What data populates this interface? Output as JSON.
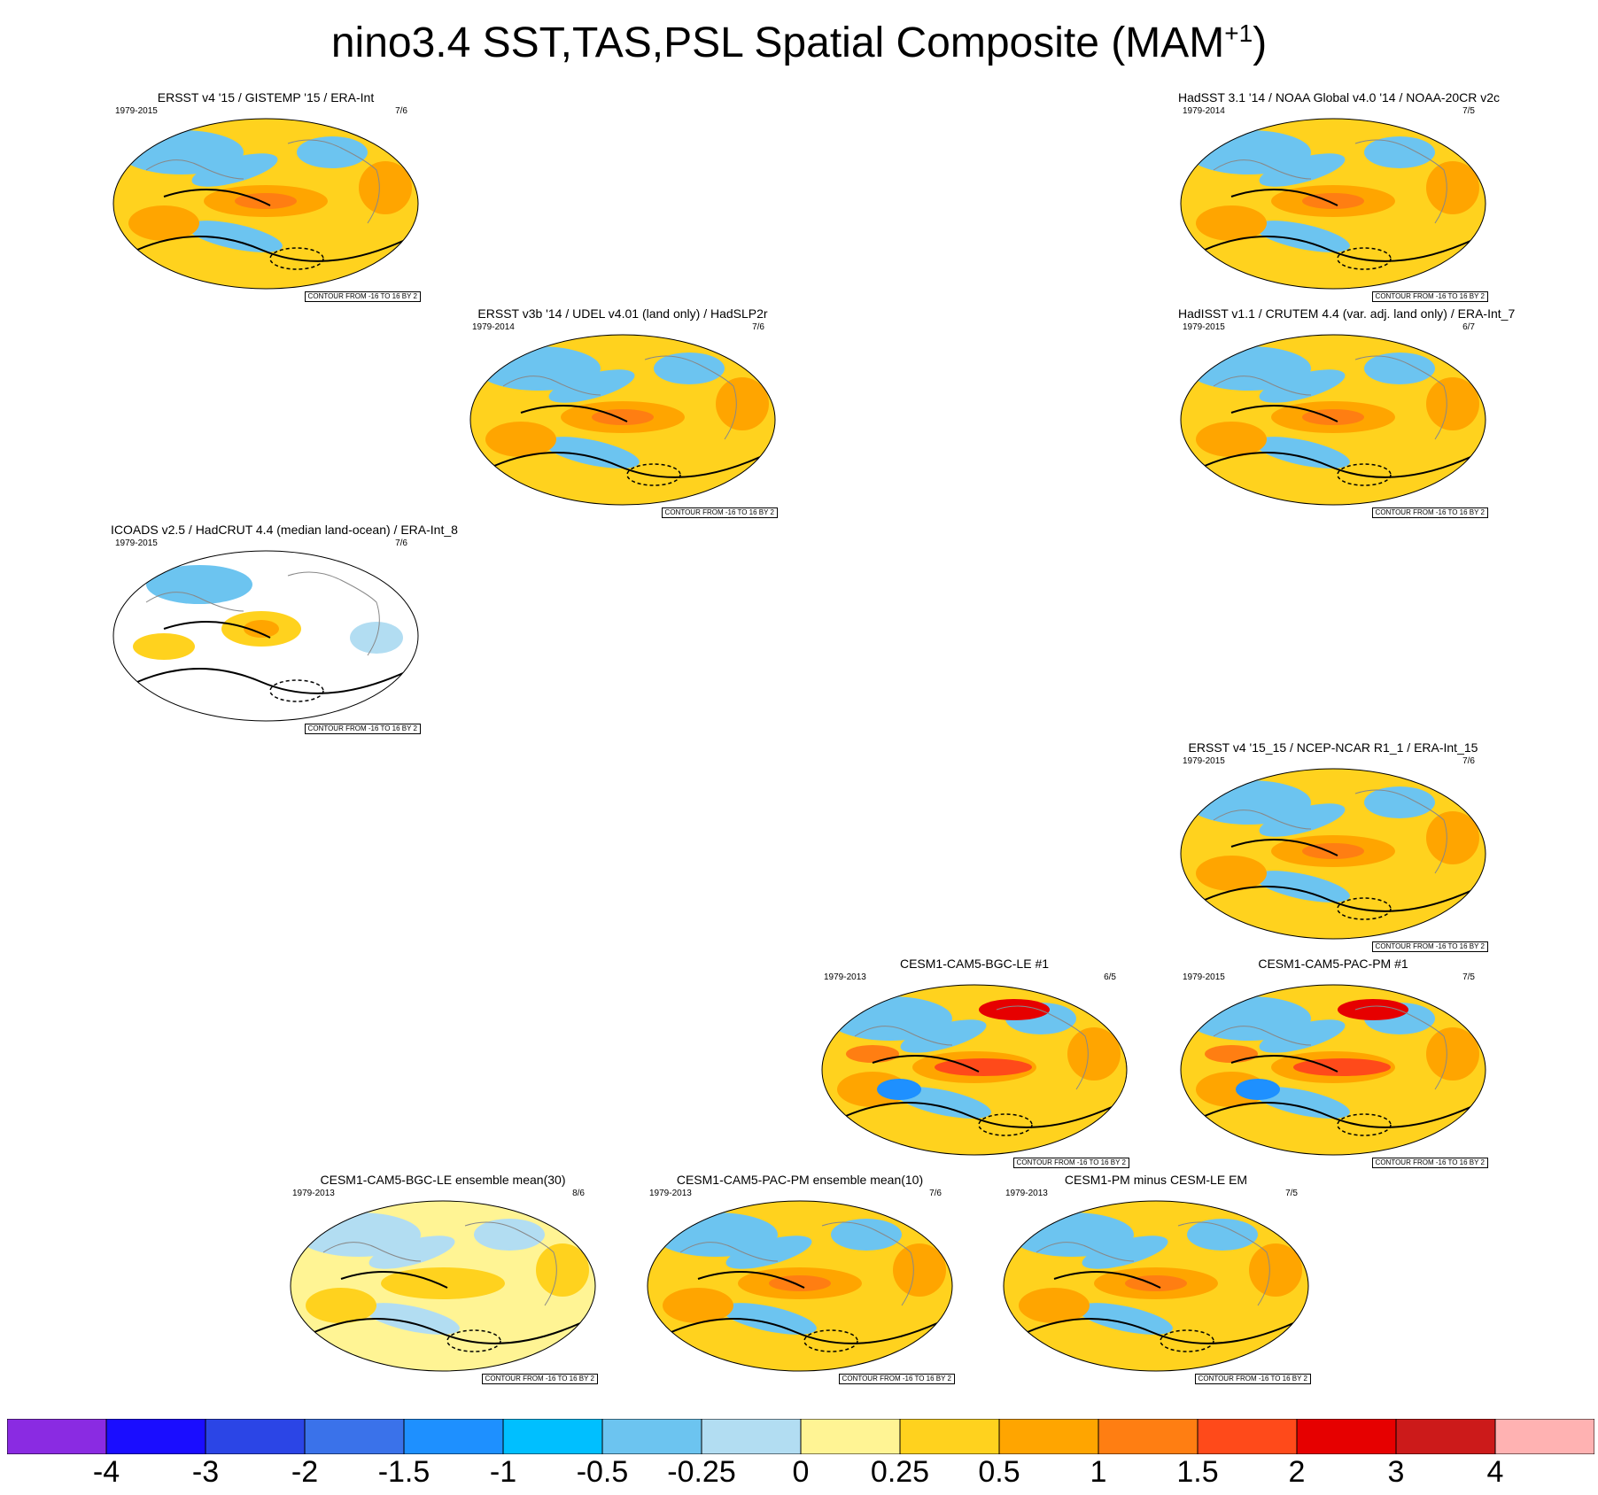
{
  "title_main": "nino3.4 SST,TAS,PSL Spatial Composite (MAM",
  "title_sup": "+1",
  "title_end": ")",
  "contour_text": "CONTOUR FROM -16 TO 16 BY 2",
  "panels": [
    {
      "title": "ERSST v4 '15 / GISTEMP '15 / ERA-Int",
      "years": "1979-2015",
      "ratio": "7/6",
      "style": "obs"
    },
    {
      "title": "HadSST 3.1 '14 / NOAA Global v4.0 '14 / NOAA-20CR v2c",
      "years": "1979-2014",
      "ratio": "7/5",
      "style": "obs"
    },
    {
      "title": "ERSST v3b '14 / UDEL v4.01 (land only) / HadSLP2r",
      "years": "1979-2014",
      "ratio": "7/6",
      "style": "obs"
    },
    {
      "title": "HadISST v1.1 / CRUTEM 4.4 (var. adj. land only) / ERA-Int_7",
      "years": "1979-2015",
      "ratio": "6/7",
      "style": "obs"
    },
    {
      "title": "ICOADS v2.5 / HadCRUT 4.4 (median land-ocean) / ERA-Int_8",
      "years": "1979-2015",
      "ratio": "7/6",
      "style": "sparse"
    },
    {
      "title": "ERSST v4 '15_15 / NCEP-NCAR R1_1 / ERA-Int_15",
      "years": "1979-2015",
      "ratio": "7/6",
      "style": "obs"
    },
    {
      "title": "CESM1-CAM5-BGC-LE #1",
      "years": "1979-2013",
      "ratio": "6/5",
      "style": "strong"
    },
    {
      "title": "CESM1-CAM5-PAC-PM #1",
      "years": "1979-2015",
      "ratio": "7/5",
      "style": "strong"
    },
    {
      "title": "CESM1-CAM5-BGC-LE ensemble mean(30)",
      "years": "1979-2013",
      "ratio": "8/6",
      "style": "weak"
    },
    {
      "title": "CESM1-CAM5-PAC-PM ensemble mean(10)",
      "years": "1979-2013",
      "ratio": "7/6",
      "style": "obs"
    },
    {
      "title": "CESM1-PM minus CESM-LE EM",
      "years": "1979-2013",
      "ratio": "7/5",
      "style": "obs"
    }
  ],
  "colorbar": {
    "colors": [
      "#8a2be2",
      "#1a0dff",
      "#2b45e6",
      "#3a72ea",
      "#1e90ff",
      "#00bfff",
      "#6cc4f0",
      "#b2ddf2",
      "#fff494",
      "#ffd21e",
      "#ffa500",
      "#ff7e12",
      "#ff4a1a",
      "#e60000",
      "#cc1a1a",
      "#ffb2b2"
    ],
    "labels": [
      "-4",
      "-3",
      "-2",
      "-1.5",
      "-1",
      "-0.5",
      "-0.25",
      "0",
      "0.25",
      "0.5",
      "1",
      "1.5",
      "2",
      "3",
      "4"
    ]
  }
}
